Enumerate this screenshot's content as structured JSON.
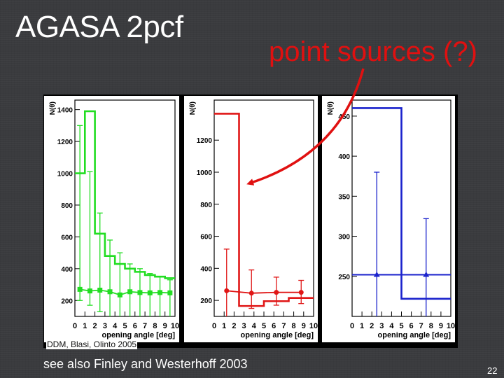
{
  "slide": {
    "title": "AGASA 2pcf",
    "subtitle": "point sources (?)",
    "credit": "DDM, Blasi, Olinto 2005",
    "footnote": "see also Finley and Westerhoff 2003",
    "page_number": "22"
  },
  "colors": {
    "green": "#22dd22",
    "red": "#e01616",
    "blue": "#1a22cc",
    "arrow": "#e01010"
  },
  "chart_data": [
    {
      "type": "line",
      "step": true,
      "color": "green",
      "ylabel": "N(θ)",
      "xlabel": "opening angle [deg]",
      "xlim": [
        0,
        10
      ],
      "ylim": [
        100,
        1460
      ],
      "xticks": [
        0,
        1,
        2,
        3,
        4,
        5,
        6,
        7,
        8,
        9,
        10
      ],
      "yticks": [
        200,
        400,
        600,
        800,
        1000,
        1200,
        1400
      ],
      "histogram": {
        "edges": [
          0,
          1,
          2,
          3,
          4,
          5,
          6,
          7,
          8,
          9,
          10
        ],
        "values": [
          1000,
          1390,
          620,
          480,
          430,
          400,
          380,
          360,
          350,
          340
        ]
      },
      "expected": {
        "x": [
          0.5,
          1.5,
          2.5,
          3.5,
          4.5,
          5.5,
          6.5,
          7.5,
          8.5,
          9.5
        ],
        "y": [
          270,
          260,
          265,
          255,
          235,
          255,
          250,
          248,
          250,
          248
        ],
        "yerr_low": [
          200,
          170,
          130,
          100,
          80,
          70,
          60,
          55,
          50,
          48
        ],
        "yerr_high": [
          1300,
          1010,
          750,
          580,
          500,
          430,
          400,
          370,
          350,
          330
        ]
      }
    },
    {
      "type": "line",
      "step": true,
      "color": "red",
      "ylabel": "N(θ)",
      "xlabel": "opening angle [deg]",
      "xlim": [
        0,
        10
      ],
      "ylim": [
        100,
        1450
      ],
      "xticks": [
        0,
        1,
        2,
        3,
        4,
        5,
        6,
        7,
        8,
        9,
        10
      ],
      "yticks": [
        200,
        400,
        600,
        800,
        1000,
        1200
      ],
      "histogram": {
        "edges": [
          0,
          2.5,
          5,
          7.5,
          10
        ],
        "values": [
          1365,
          165,
          195,
          215
        ]
      },
      "expected": {
        "x": [
          1.25,
          3.75,
          6.25,
          8.75
        ],
        "y": [
          260,
          245,
          250,
          250
        ],
        "yerr_low": [
          0,
          150,
          170,
          180
        ],
        "yerr_high": [
          520,
          390,
          345,
          325
        ]
      }
    },
    {
      "type": "line",
      "step": true,
      "color": "blue",
      "ylabel": "N(θ)",
      "xlabel": "opening angle [deg]",
      "xlim": [
        0,
        10
      ],
      "ylim": [
        200,
        470
      ],
      "xticks": [
        0,
        1,
        2,
        3,
        4,
        5,
        6,
        7,
        8,
        9,
        10
      ],
      "yticks": [
        250,
        300,
        350,
        400,
        450
      ],
      "histogram": {
        "edges": [
          0,
          5,
          10
        ],
        "values": [
          460,
          222
        ]
      },
      "expected": {
        "x": [
          2.5,
          7.5
        ],
        "y": [
          252,
          252
        ],
        "yerr_low": [
          200,
          200
        ],
        "yerr_high": [
          380,
          322
        ]
      }
    }
  ]
}
